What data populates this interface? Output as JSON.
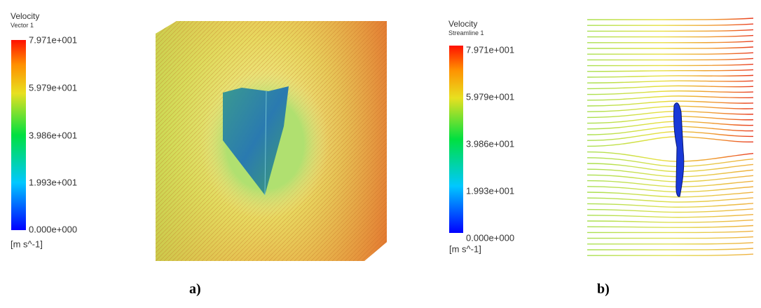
{
  "panels": [
    {
      "legend": {
        "title": "Velocity",
        "subtitle": "Vector 1",
        "ticks": [
          "7.971e+001",
          "5.979e+001",
          "3.986e+001",
          "1.993e+001",
          "0.000e+000"
        ],
        "unit": "[m s^-1]"
      },
      "caption": "a)"
    },
    {
      "legend": {
        "title": "Velocity",
        "subtitle": "Streamline 1",
        "ticks": [
          "7.971e+001",
          "5.979e+001",
          "3.986e+001",
          "1.993e+001",
          "0.000e+000"
        ],
        "unit": "[m s^-1]"
      },
      "caption": "b)"
    }
  ]
}
